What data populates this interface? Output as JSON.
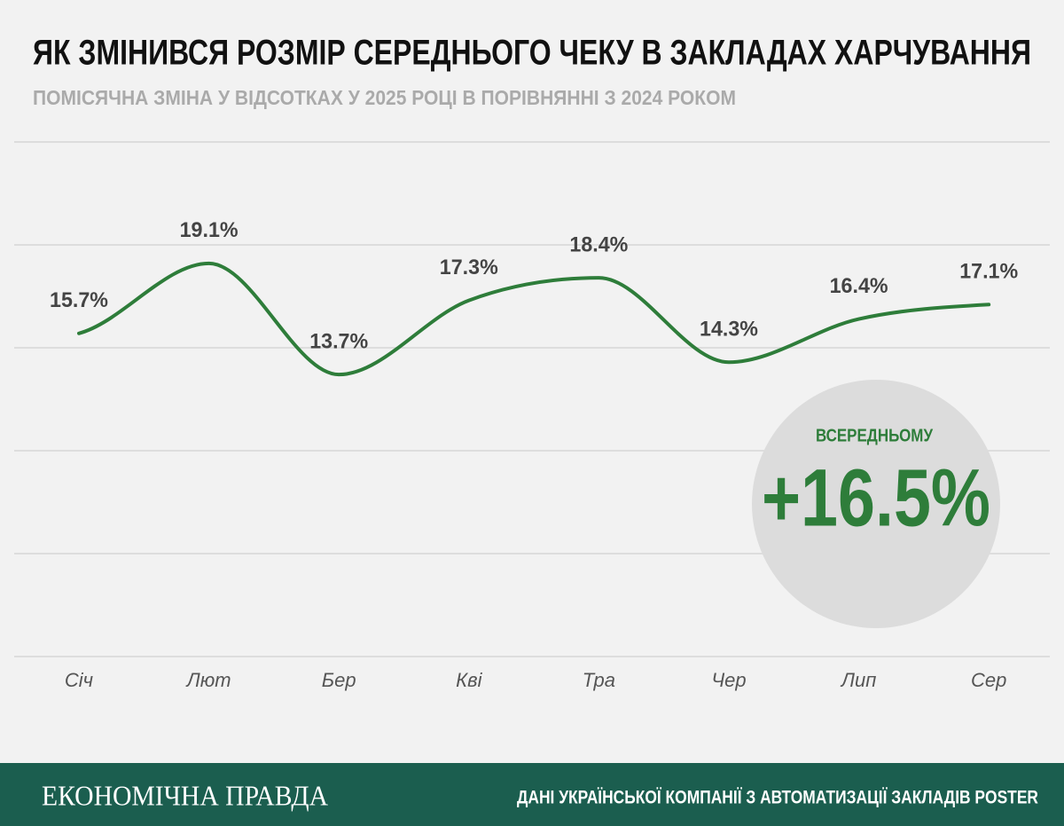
{
  "chart_data": {
    "type": "line",
    "title": "ЯК ЗМІНИВСЯ РОЗМІР СЕРЕДНЬОГО ЧЕКУ В ЗАКЛАДАХ ХАРЧУВАННЯ",
    "subtitle": "ПОМІСЯЧНА ЗМІНА У ВІДСОТКАХ У 2025 РОЦІ В ПОРІВНЯННІ З 2024 РОКОМ",
    "categories": [
      "Січ",
      "Лют",
      "Бер",
      "Кві",
      "Тра",
      "Чер",
      "Лип",
      "Сер"
    ],
    "values": [
      15.7,
      19.1,
      13.7,
      17.3,
      18.4,
      14.3,
      16.4,
      17.1
    ],
    "value_labels": [
      "15.7%",
      "19.1%",
      "13.7%",
      "17.3%",
      "18.4%",
      "14.3%",
      "16.4%",
      "17.1%"
    ],
    "color": "#2e7d3a",
    "ylim": [
      0,
      25
    ],
    "yticks": [
      0,
      5,
      10,
      15,
      20,
      25
    ],
    "grid": true,
    "annotation": {
      "label": "ВСЕРЕДНЬОМУ",
      "text": "+16.5%"
    }
  },
  "footer": {
    "brand": "ЕКОНОМІЧНА ПРАВДА",
    "source": "ДАНІ УКРАЇНСЬКОЇ КОМПАНІЇ З АВТОМАТИЗАЦІЇ ЗАКЛАДІВ POSTER"
  }
}
